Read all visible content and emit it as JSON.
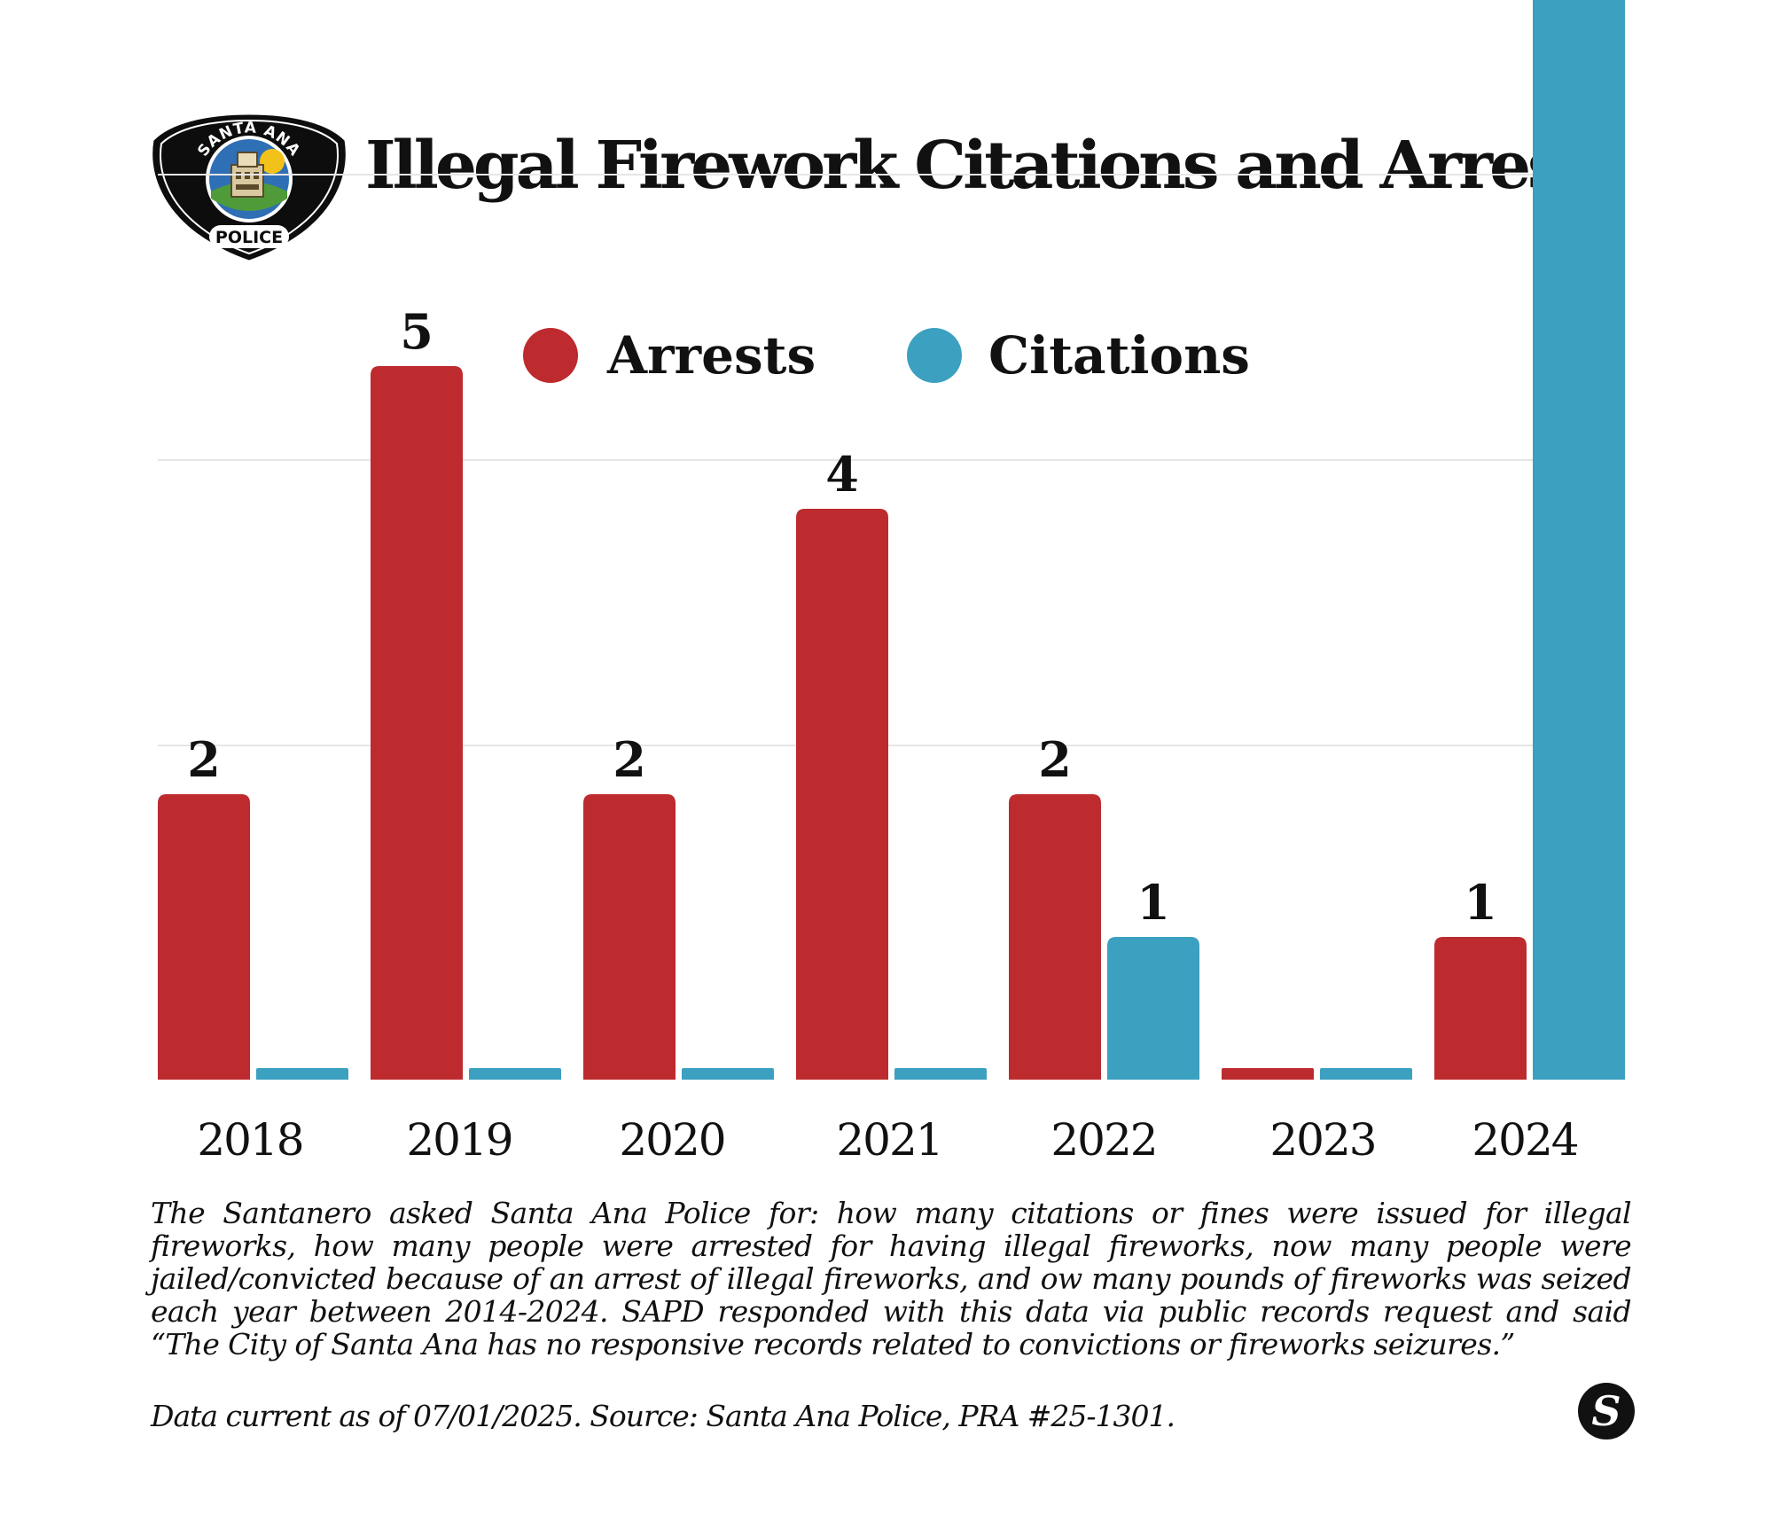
{
  "header": {
    "title": "Illegal Firework Citations and Arrests",
    "badge_top_text": "SANTA ANA",
    "badge_bottom_text": "POLICE"
  },
  "chart_data": {
    "type": "bar",
    "title": "Illegal Firework Citations and Arrests",
    "categories": [
      "2018",
      "2019",
      "2020",
      "2021",
      "2022",
      "2023",
      "2024"
    ],
    "series": [
      {
        "name": "Arrests",
        "color": "#bd2b2e",
        "values": [
          2,
          5,
          2,
          4,
          2,
          0,
          1
        ]
      },
      {
        "name": "Citations",
        "color": "#3ca0c0",
        "values": [
          0,
          0,
          0,
          0,
          1,
          0,
          8
        ]
      }
    ],
    "ylim": [
      0,
      8
    ],
    "xlabel": "",
    "ylabel": "",
    "grid": true,
    "legend_position": "top-center",
    "value_labels_shown_for_nonzero": true
  },
  "footer": {
    "note": "The Santanero asked Santa Ana Police for: how many citations or fines were issued for illegal fireworks, how many people were arrested for having illegal fireworks, now many people were jailed/convicted because of an arrest of illegal fireworks, and ow many pounds of fireworks was seized each year between 2014-2024. SAPD responded with this data via public records request and said “The City of Santa Ana has no responsive records related to convictions or fireworks seizures.”",
    "source": "Data current as of 07/01/2025. Source: Santa Ana Police, PRA #25-1301.",
    "brand_mark": "S"
  },
  "colors": {
    "arrests": "#bd2b2e",
    "citations": "#3ca0c0",
    "grid": "#e6e6e6",
    "text": "#111111"
  }
}
